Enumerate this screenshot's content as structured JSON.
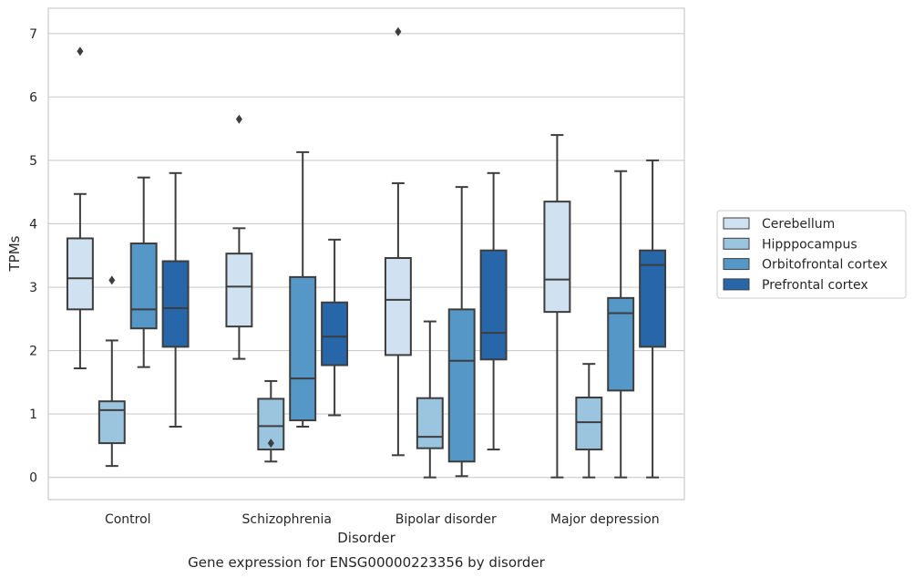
{
  "chart_data": {
    "type": "box",
    "title": "Gene expression for ENSG00000223356 by disorder",
    "xlabel": "Disorder",
    "ylabel": "TPMs",
    "ylim": [
      -0.35,
      7.4
    ],
    "yticks": [
      0,
      1,
      2,
      3,
      4,
      5,
      6,
      7
    ],
    "grid": "horizontal",
    "legend": "right",
    "categories": [
      "Control",
      "Schizophrenia",
      "Bipolar disorder",
      "Major depression"
    ],
    "series": [
      {
        "name": "Cerebellum",
        "color": "#d0e1f1",
        "boxes": [
          {
            "whislo": 1.72,
            "q1": 2.65,
            "med": 3.14,
            "q3": 3.77,
            "whishi": 4.47,
            "fliers": [
              6.72
            ]
          },
          {
            "whislo": 1.87,
            "q1": 2.38,
            "med": 3.01,
            "q3": 3.53,
            "whishi": 3.93,
            "fliers": [
              5.65
            ]
          },
          {
            "whislo": 0.35,
            "q1": 1.93,
            "med": 2.8,
            "q3": 3.46,
            "whishi": 4.64,
            "fliers": [
              7.03
            ]
          },
          {
            "whislo": 0.0,
            "q1": 2.61,
            "med": 3.12,
            "q3": 4.35,
            "whishi": 5.4,
            "fliers": []
          }
        ]
      },
      {
        "name": "Hipppocampus",
        "color": "#9bc4de",
        "boxes": [
          {
            "whislo": 0.18,
            "q1": 0.54,
            "med": 1.06,
            "q3": 1.2,
            "whishi": 2.16,
            "fliers": [
              3.11
            ]
          },
          {
            "whislo": 0.25,
            "q1": 0.44,
            "med": 0.81,
            "q3": 1.24,
            "whishi": 1.52,
            "fliers": [
              0.54
            ]
          },
          {
            "whislo": 0.0,
            "q1": 0.46,
            "med": 0.64,
            "q3": 1.25,
            "whishi": 2.46,
            "fliers": []
          },
          {
            "whislo": 0.0,
            "q1": 0.44,
            "med": 0.87,
            "q3": 1.26,
            "whishi": 1.79,
            "fliers": []
          }
        ]
      },
      {
        "name": "Orbitofrontal cortex",
        "color": "#5597c7",
        "boxes": [
          {
            "whislo": 1.74,
            "q1": 2.35,
            "med": 2.65,
            "q3": 3.69,
            "whishi": 4.73,
            "fliers": []
          },
          {
            "whislo": 0.8,
            "q1": 0.9,
            "med": 1.56,
            "q3": 3.16,
            "whishi": 5.13,
            "fliers": []
          },
          {
            "whislo": 0.02,
            "q1": 0.25,
            "med": 1.84,
            "q3": 2.65,
            "whishi": 4.58,
            "fliers": []
          },
          {
            "whislo": 0.0,
            "q1": 1.37,
            "med": 2.59,
            "q3": 2.83,
            "whishi": 4.83,
            "fliers": []
          }
        ]
      },
      {
        "name": "Prefrontal cortex",
        "color": "#2766a8",
        "boxes": [
          {
            "whislo": 0.8,
            "q1": 2.06,
            "med": 2.67,
            "q3": 3.41,
            "whishi": 4.8,
            "fliers": []
          },
          {
            "whislo": 0.98,
            "q1": 1.77,
            "med": 2.22,
            "q3": 2.76,
            "whishi": 3.75,
            "fliers": []
          },
          {
            "whislo": 0.44,
            "q1": 1.86,
            "med": 2.28,
            "q3": 3.58,
            "whishi": 4.8,
            "fliers": []
          },
          {
            "whislo": 0.0,
            "q1": 2.06,
            "med": 3.35,
            "q3": 3.58,
            "whishi": 5.0,
            "fliers": []
          }
        ]
      }
    ]
  }
}
